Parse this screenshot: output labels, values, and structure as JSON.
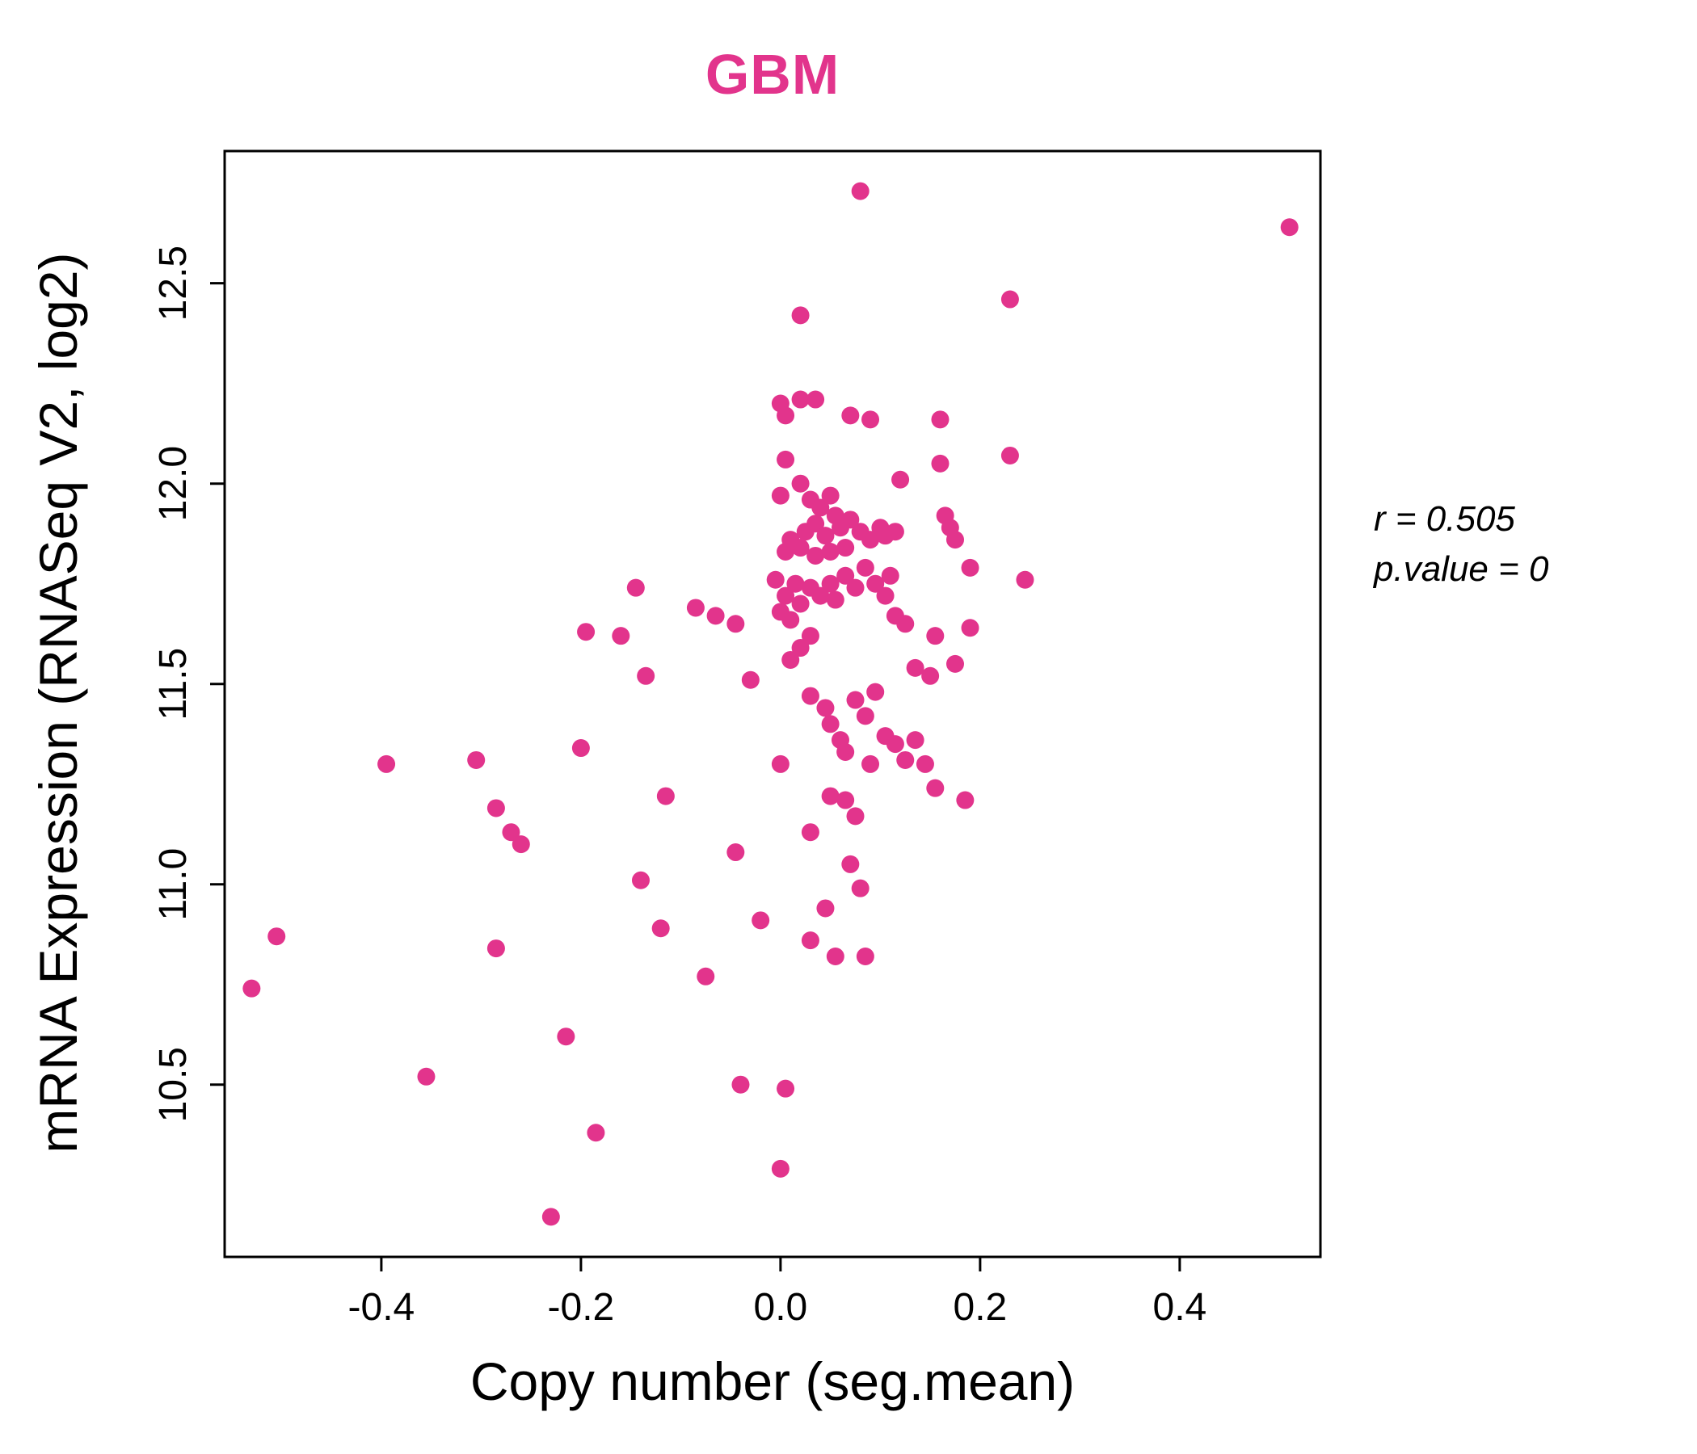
{
  "title": "GBM",
  "annotation": {
    "line1": "r = 0.505",
    "line2": "p.value = 0"
  },
  "colors": {
    "accent": "#E2348C",
    "axis": "#000000",
    "background": "#FFFFFF"
  },
  "chart_data": {
    "type": "scatter",
    "title": "GBM",
    "xlabel": "Copy number (seg.mean)",
    "ylabel": "mRNA Expression (RNASeq V2, log2)",
    "xlim": [
      -0.557,
      0.541
    ],
    "ylim": [
      10.07,
      12.83
    ],
    "x_ticks": [
      -0.4,
      -0.2,
      0.0,
      0.2,
      0.4
    ],
    "x_tick_labels": [
      "-0.4",
      "-0.2",
      "0.0",
      "0.2",
      "0.4"
    ],
    "y_ticks": [
      10.5,
      11.0,
      11.5,
      12.0,
      12.5
    ],
    "y_tick_labels": [
      "10.5",
      "11.0",
      "11.5",
      "12.0",
      "12.5"
    ],
    "grid": false,
    "legend": null,
    "stats": {
      "r": 0.505,
      "p_value": 0
    },
    "points": [
      [
        -0.53,
        10.74
      ],
      [
        -0.505,
        10.87
      ],
      [
        -0.395,
        11.3
      ],
      [
        -0.355,
        10.52
      ],
      [
        -0.305,
        11.31
      ],
      [
        -0.285,
        11.19
      ],
      [
        -0.27,
        11.13
      ],
      [
        -0.26,
        11.1
      ],
      [
        -0.285,
        10.84
      ],
      [
        -0.23,
        10.17
      ],
      [
        -0.215,
        10.62
      ],
      [
        -0.2,
        11.34
      ],
      [
        -0.185,
        10.38
      ],
      [
        -0.195,
        11.63
      ],
      [
        -0.16,
        11.62
      ],
      [
        -0.145,
        11.74
      ],
      [
        -0.14,
        11.01
      ],
      [
        -0.135,
        11.52
      ],
      [
        -0.12,
        10.89
      ],
      [
        -0.115,
        11.22
      ],
      [
        -0.085,
        11.69
      ],
      [
        -0.075,
        10.77
      ],
      [
        -0.065,
        11.67
      ],
      [
        -0.045,
        11.65
      ],
      [
        -0.045,
        11.08
      ],
      [
        -0.04,
        10.5
      ],
      [
        -0.03,
        11.51
      ],
      [
        -0.02,
        10.91
      ],
      [
        0.0,
        10.29
      ],
      [
        0.005,
        10.49
      ],
      [
        0.08,
        12.73
      ],
      [
        0.51,
        12.64
      ],
      [
        0.23,
        12.46
      ],
      [
        0.02,
        12.42
      ],
      [
        0.0,
        12.2
      ],
      [
        0.02,
        12.21
      ],
      [
        0.035,
        12.21
      ],
      [
        0.005,
        12.17
      ],
      [
        0.07,
        12.17
      ],
      [
        0.09,
        12.16
      ],
      [
        0.16,
        12.16
      ],
      [
        0.005,
        12.06
      ],
      [
        0.23,
        12.07
      ],
      [
        0.12,
        12.01
      ],
      [
        0.16,
        12.05
      ],
      [
        0.0,
        11.97
      ],
      [
        0.02,
        12.0
      ],
      [
        0.03,
        11.96
      ],
      [
        0.04,
        11.94
      ],
      [
        0.05,
        11.97
      ],
      [
        0.055,
        11.92
      ],
      [
        0.035,
        11.9
      ],
      [
        0.025,
        11.88
      ],
      [
        0.045,
        11.87
      ],
      [
        0.06,
        11.89
      ],
      [
        0.07,
        11.91
      ],
      [
        0.08,
        11.88
      ],
      [
        0.09,
        11.86
      ],
      [
        0.1,
        11.89
      ],
      [
        0.105,
        11.87
      ],
      [
        0.115,
        11.88
      ],
      [
        0.065,
        11.84
      ],
      [
        0.05,
        11.83
      ],
      [
        0.035,
        11.82
      ],
      [
        0.02,
        11.84
      ],
      [
        0.01,
        11.86
      ],
      [
        0.005,
        11.83
      ],
      [
        0.165,
        11.92
      ],
      [
        0.175,
        11.86
      ],
      [
        0.19,
        11.79
      ],
      [
        0.17,
        11.89
      ],
      [
        -0.005,
        11.76
      ],
      [
        0.005,
        11.72
      ],
      [
        0.015,
        11.75
      ],
      [
        0.02,
        11.7
      ],
      [
        0.03,
        11.74
      ],
      [
        0.04,
        11.72
      ],
      [
        0.05,
        11.75
      ],
      [
        0.055,
        11.71
      ],
      [
        0.065,
        11.77
      ],
      [
        0.075,
        11.74
      ],
      [
        0.085,
        11.79
      ],
      [
        0.095,
        11.75
      ],
      [
        0.105,
        11.72
      ],
      [
        0.11,
        11.77
      ],
      [
        0.245,
        11.76
      ],
      [
        0.0,
        11.68
      ],
      [
        0.01,
        11.66
      ],
      [
        0.115,
        11.67
      ],
      [
        0.125,
        11.65
      ],
      [
        0.155,
        11.62
      ],
      [
        0.19,
        11.64
      ],
      [
        0.03,
        11.62
      ],
      [
        0.02,
        11.59
      ],
      [
        0.01,
        11.56
      ],
      [
        0.03,
        11.47
      ],
      [
        0.045,
        11.44
      ],
      [
        0.05,
        11.4
      ],
      [
        0.06,
        11.36
      ],
      [
        0.065,
        11.33
      ],
      [
        0.075,
        11.46
      ],
      [
        0.085,
        11.42
      ],
      [
        0.095,
        11.48
      ],
      [
        0.105,
        11.37
      ],
      [
        0.115,
        11.35
      ],
      [
        0.125,
        11.31
      ],
      [
        0.135,
        11.36
      ],
      [
        0.145,
        11.3
      ],
      [
        0.155,
        11.24
      ],
      [
        0.175,
        11.55
      ],
      [
        0.15,
        11.52
      ],
      [
        0.135,
        11.54
      ],
      [
        0.0,
        11.3
      ],
      [
        0.09,
        11.3
      ],
      [
        0.065,
        11.21
      ],
      [
        0.05,
        11.22
      ],
      [
        0.185,
        11.21
      ],
      [
        0.03,
        11.13
      ],
      [
        0.075,
        11.17
      ],
      [
        0.07,
        11.05
      ],
      [
        0.08,
        10.99
      ],
      [
        0.045,
        10.94
      ],
      [
        0.03,
        10.86
      ],
      [
        0.055,
        10.82
      ],
      [
        0.085,
        10.82
      ]
    ]
  }
}
